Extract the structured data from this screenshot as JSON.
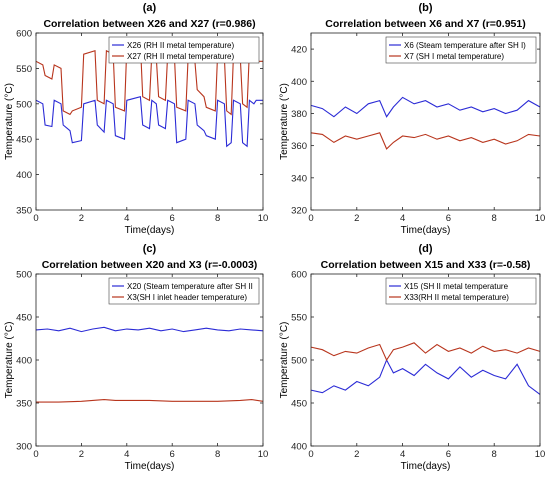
{
  "chart_data": [
    {
      "panel_label": "(a)",
      "type": "line",
      "title": "Correlation between X26 and X27 (r=0.986)",
      "xlabel": "Time(days)",
      "ylabel": "Temperature (°C)",
      "xlim": [
        0,
        10
      ],
      "ylim": [
        350,
        600
      ],
      "xticks": [
        0,
        2,
        4,
        6,
        8,
        10
      ],
      "yticks": [
        350,
        400,
        450,
        500,
        550,
        600
      ],
      "legend_position": "top-right",
      "grid": false,
      "series": [
        {
          "name": "X26 (RH II metal temperature)",
          "color": "#2b2bd6",
          "x": [
            0,
            0.3,
            0.4,
            0.7,
            0.8,
            1.1,
            1.2,
            1.5,
            1.6,
            2.0,
            2.1,
            2.6,
            2.7,
            3.0,
            3.1,
            3.4,
            3.5,
            3.9,
            4.0,
            4.6,
            4.7,
            5.0,
            5.1,
            5.3,
            5.4,
            5.7,
            5.8,
            6.1,
            6.2,
            6.6,
            6.7,
            7.0,
            7.1,
            7.4,
            7.5,
            7.9,
            8.0,
            8.3,
            8.4,
            8.6,
            8.7,
            9.0,
            9.1,
            9.3,
            9.4,
            9.6,
            9.7,
            10.0
          ],
          "y": [
            505,
            500,
            470,
            468,
            505,
            500,
            470,
            462,
            445,
            448,
            500,
            505,
            470,
            460,
            505,
            500,
            455,
            450,
            505,
            510,
            470,
            465,
            505,
            500,
            470,
            465,
            505,
            500,
            445,
            450,
            505,
            500,
            470,
            462,
            455,
            450,
            505,
            500,
            440,
            445,
            505,
            500,
            445,
            440,
            505,
            500,
            505,
            505
          ]
        },
        {
          "name": "X27 (RH II metal temperature)",
          "color": "#b8351d",
          "x": [
            0,
            0.3,
            0.4,
            0.7,
            0.8,
            1.1,
            1.2,
            1.5,
            1.6,
            2.0,
            2.1,
            2.6,
            2.7,
            3.0,
            3.1,
            3.4,
            3.5,
            3.9,
            4.0,
            4.6,
            4.7,
            5.0,
            5.1,
            5.3,
            5.4,
            5.7,
            5.8,
            6.1,
            6.2,
            6.6,
            6.7,
            7.0,
            7.1,
            7.4,
            7.5,
            7.9,
            8.0,
            8.3,
            8.4,
            8.6,
            8.7,
            9.0,
            9.1,
            9.3,
            9.4,
            9.6,
            9.7,
            10.0
          ],
          "y": [
            560,
            555,
            540,
            535,
            555,
            550,
            490,
            485,
            490,
            495,
            570,
            575,
            505,
            500,
            575,
            570,
            495,
            490,
            580,
            585,
            510,
            505,
            570,
            565,
            510,
            505,
            570,
            565,
            495,
            490,
            565,
            560,
            520,
            510,
            495,
            490,
            570,
            565,
            490,
            485,
            570,
            565,
            500,
            495,
            575,
            570,
            560,
            560
          ]
        }
      ]
    },
    {
      "panel_label": "(b)",
      "type": "line",
      "title": "Correlation between X6 and X7 (r=0.951)",
      "xlabel": "Time(days)",
      "ylabel": "Temperature (°C)",
      "xlim": [
        0,
        10
      ],
      "ylim": [
        320,
        430
      ],
      "xticks": [
        0,
        2,
        4,
        6,
        8,
        10
      ],
      "yticks": [
        320,
        340,
        360,
        380,
        400,
        420
      ],
      "legend_position": "top-right",
      "grid": false,
      "series": [
        {
          "name": "X6 (Steam temperature after SH I)",
          "color": "#2b2bd6",
          "x": [
            0,
            0.5,
            1.0,
            1.5,
            2.0,
            2.5,
            3.0,
            3.3,
            3.6,
            4.0,
            4.5,
            5.0,
            5.5,
            6.0,
            6.5,
            7.0,
            7.5,
            8.0,
            8.5,
            9.0,
            9.5,
            10.0
          ],
          "y": [
            385,
            383,
            378,
            384,
            380,
            386,
            388,
            378,
            384,
            390,
            386,
            388,
            384,
            386,
            382,
            384,
            381,
            383,
            380,
            382,
            388,
            384
          ]
        },
        {
          "name": "X7 (SH I metal temperature)",
          "color": "#b8351d",
          "x": [
            0,
            0.5,
            1.0,
            1.5,
            2.0,
            2.5,
            3.0,
            3.3,
            3.6,
            4.0,
            4.5,
            5.0,
            5.5,
            6.0,
            6.5,
            7.0,
            7.5,
            8.0,
            8.5,
            9.0,
            9.5,
            10.0
          ],
          "y": [
            368,
            367,
            362,
            366,
            364,
            366,
            368,
            358,
            362,
            366,
            365,
            367,
            364,
            366,
            363,
            365,
            362,
            364,
            361,
            363,
            367,
            366
          ]
        }
      ]
    },
    {
      "panel_label": "(c)",
      "type": "line",
      "title": "Correlation between X20 and X3 (r=-0.0003)",
      "xlabel": "Time(days)",
      "ylabel": "Temperature (°C)",
      "xlim": [
        0,
        10
      ],
      "ylim": [
        300,
        500
      ],
      "xticks": [
        0,
        2,
        4,
        6,
        8,
        10
      ],
      "yticks": [
        300,
        350,
        400,
        450,
        500
      ],
      "legend_position": "top-right",
      "grid": false,
      "series": [
        {
          "name": "X20 (Steam temperature after SH II",
          "color": "#2b2bd6",
          "x": [
            0,
            0.5,
            1.0,
            1.5,
            2.0,
            2.5,
            3.0,
            3.5,
            4.0,
            4.5,
            5.0,
            5.5,
            6.0,
            6.5,
            7.0,
            7.5,
            8.0,
            8.5,
            9.0,
            9.5,
            10.0
          ],
          "y": [
            435,
            436,
            434,
            437,
            433,
            436,
            438,
            434,
            436,
            435,
            437,
            434,
            436,
            433,
            435,
            437,
            435,
            434,
            436,
            435,
            434
          ]
        },
        {
          "name": "X3(SH I inlet header temperature)",
          "color": "#b8351d",
          "x": [
            0,
            1,
            2,
            3,
            3.5,
            4,
            5,
            6,
            7,
            8,
            9,
            9.5,
            10
          ],
          "y": [
            351,
            351,
            352,
            354,
            353,
            353,
            353,
            352,
            352,
            352,
            353,
            354,
            352
          ]
        }
      ]
    },
    {
      "panel_label": "(d)",
      "type": "line",
      "title": "Correlation between X15 and X33 (r=-0.58)",
      "xlabel": "Time(days)",
      "ylabel": "Temperature (°C)",
      "xlim": [
        0,
        10
      ],
      "ylim": [
        400,
        600
      ],
      "xticks": [
        0,
        2,
        4,
        6,
        8,
        10
      ],
      "yticks": [
        400,
        450,
        500,
        550,
        600
      ],
      "legend_position": "top-right",
      "grid": false,
      "series": [
        {
          "name": "X15 (SH II metal temperature",
          "color": "#2b2bd6",
          "x": [
            0,
            0.5,
            1.0,
            1.5,
            2.0,
            2.5,
            3.0,
            3.3,
            3.6,
            4.0,
            4.5,
            5.0,
            5.5,
            6.0,
            6.5,
            7.0,
            7.5,
            8.0,
            8.5,
            9.0,
            9.5,
            10.0
          ],
          "y": [
            465,
            462,
            470,
            465,
            475,
            470,
            480,
            500,
            485,
            490,
            482,
            495,
            485,
            478,
            492,
            480,
            488,
            482,
            478,
            495,
            470,
            460
          ]
        },
        {
          "name": "X33(RH II metal temperature)",
          "color": "#b8351d",
          "x": [
            0,
            0.5,
            1.0,
            1.5,
            2.0,
            2.5,
            3.0,
            3.3,
            3.6,
            4.0,
            4.5,
            5.0,
            5.5,
            6.0,
            6.5,
            7.0,
            7.5,
            8.0,
            8.5,
            9.0,
            9.5,
            10.0
          ],
          "y": [
            515,
            512,
            505,
            510,
            508,
            514,
            518,
            500,
            512,
            515,
            520,
            508,
            518,
            510,
            514,
            508,
            516,
            510,
            512,
            508,
            514,
            510
          ]
        }
      ]
    }
  ]
}
